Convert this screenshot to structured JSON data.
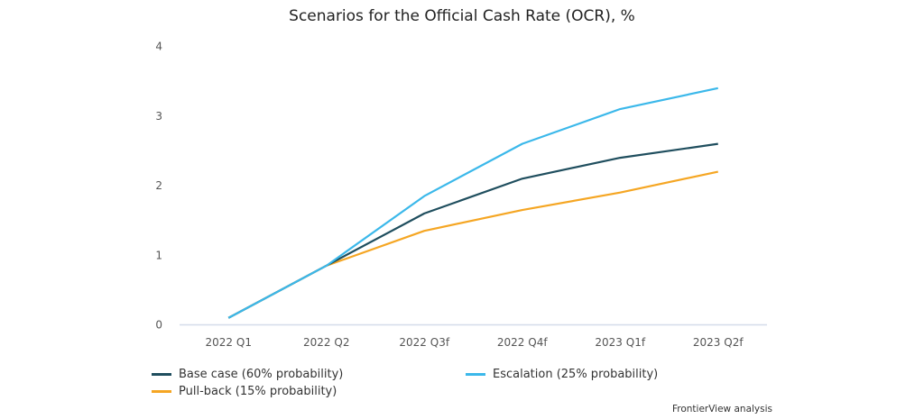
{
  "chart_data": {
    "type": "line",
    "title": "Scenarios for the Official Cash Rate (OCR), %",
    "xlabel": "",
    "ylabel": "",
    "categories": [
      "2022 Q1",
      "2022 Q2",
      "2022 Q3f",
      "2022 Q4f",
      "2023 Q1f",
      "2023 Q2f"
    ],
    "ylim": [
      0,
      4
    ],
    "yticks": [
      "0",
      "1",
      "2",
      "3",
      "4"
    ],
    "grid": false,
    "legend_position": "bottom",
    "series": [
      {
        "name": "Base case (60% probability)",
        "color": "#1f4e5e",
        "values": [
          0.1,
          0.85,
          1.6,
          2.1,
          2.4,
          2.6
        ]
      },
      {
        "name": "Escalation (25% probability)",
        "color": "#3bb8ea",
        "values": [
          0.1,
          0.85,
          1.85,
          2.6,
          3.1,
          3.4
        ]
      },
      {
        "name": "Pull-back (15% probability)",
        "color": "#f5a623",
        "values": [
          0.1,
          0.85,
          1.35,
          1.65,
          1.9,
          2.2
        ]
      }
    ],
    "source": "FrontierView analysis"
  }
}
